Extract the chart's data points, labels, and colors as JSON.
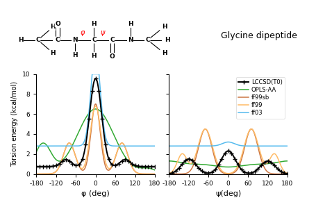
{
  "title": "Glycine dipeptide",
  "ylabel": "Torsion energy (kcal/mol)",
  "xlabel_phi": "φ (deg)",
  "xlabel_psi": "ψ(deg)",
  "ylim": [
    0,
    10
  ],
  "xlim": [
    -180,
    180
  ],
  "xticks": [
    -180,
    -120,
    -60,
    0,
    60,
    120,
    180
  ],
  "yticks": [
    0,
    2,
    4,
    6,
    8,
    10
  ],
  "colors": {
    "lccsd": "#000000",
    "opls": "#33aa33",
    "ff99sb": "#cc7744",
    "ff99": "#ffbb66",
    "ff03": "#55bbee"
  },
  "legend_labels": [
    "LCCSD(T0)",
    "OPLS-AA",
    "ff99sb",
    "ff99",
    "ff03"
  ]
}
